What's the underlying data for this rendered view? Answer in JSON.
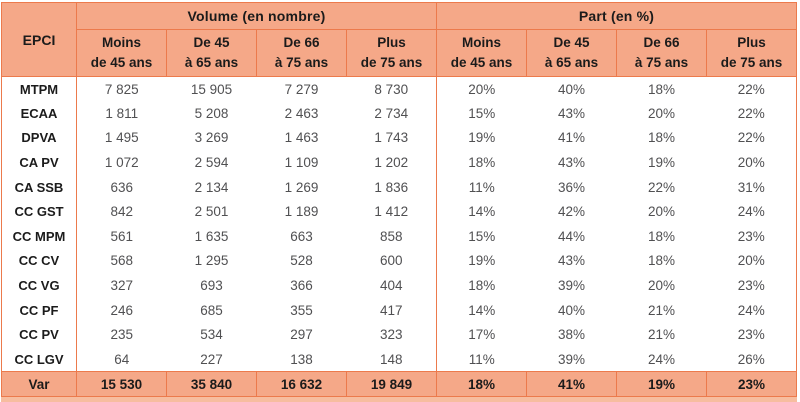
{
  "colors": {
    "header_bg": "#F5A888",
    "border": "#EC7A4C",
    "header_text": "#1b1b1b",
    "body_text": "#505052",
    "shadow": "#F7BD9F"
  },
  "chart_data": {
    "type": "table",
    "corner_header": "EPCI",
    "column_groups": [
      "Volume (en nombre)",
      "Part (en %)"
    ],
    "age_columns": [
      [
        "Moins",
        "de 45 ans"
      ],
      [
        "De 45",
        "à 65 ans"
      ],
      [
        "De 66",
        "à 75 ans"
      ],
      [
        "Plus",
        "de 75 ans"
      ]
    ],
    "rows": [
      {
        "label": "MTPM",
        "volume": [
          "7 825",
          "15 905",
          "7 279",
          "8 730"
        ],
        "part": [
          "20%",
          "40%",
          "18%",
          "22%"
        ]
      },
      {
        "label": "ECAA",
        "volume": [
          "1 811",
          "5 208",
          "2 463",
          "2 734"
        ],
        "part": [
          "15%",
          "43%",
          "20%",
          "22%"
        ]
      },
      {
        "label": "DPVA",
        "volume": [
          "1 495",
          "3 269",
          "1 463",
          "1 743"
        ],
        "part": [
          "19%",
          "41%",
          "18%",
          "22%"
        ]
      },
      {
        "label": "CA PV",
        "volume": [
          "1 072",
          "2 594",
          "1 109",
          "1 202"
        ],
        "part": [
          "18%",
          "43%",
          "19%",
          "20%"
        ]
      },
      {
        "label": "CA SSB",
        "volume": [
          "636",
          "2 134",
          "1 269",
          "1 836"
        ],
        "part": [
          "11%",
          "36%",
          "22%",
          "31%"
        ]
      },
      {
        "label": "CC GST",
        "volume": [
          "842",
          "2 501",
          "1 189",
          "1 412"
        ],
        "part": [
          "14%",
          "42%",
          "20%",
          "24%"
        ]
      },
      {
        "label": "CC MPM",
        "volume": [
          "561",
          "1 635",
          "663",
          "858"
        ],
        "part": [
          "15%",
          "44%",
          "18%",
          "23%"
        ]
      },
      {
        "label": "CC CV",
        "volume": [
          "568",
          "1 295",
          "528",
          "600"
        ],
        "part": [
          "19%",
          "43%",
          "18%",
          "20%"
        ]
      },
      {
        "label": "CC VG",
        "volume": [
          "327",
          "693",
          "366",
          "404"
        ],
        "part": [
          "18%",
          "39%",
          "20%",
          "23%"
        ]
      },
      {
        "label": "CC PF",
        "volume": [
          "246",
          "685",
          "355",
          "417"
        ],
        "part": [
          "14%",
          "40%",
          "21%",
          "24%"
        ]
      },
      {
        "label": "CC PV",
        "volume": [
          "235",
          "534",
          "297",
          "323"
        ],
        "part": [
          "17%",
          "38%",
          "21%",
          "23%"
        ]
      },
      {
        "label": "CC LGV",
        "volume": [
          "64",
          "227",
          "138",
          "148"
        ],
        "part": [
          "11%",
          "39%",
          "24%",
          "26%"
        ]
      }
    ],
    "total_row": {
      "label": "Var",
      "volume": [
        "15 530",
        "35 840",
        "16 632",
        "19 849"
      ],
      "part": [
        "18%",
        "41%",
        "19%",
        "23%"
      ]
    }
  }
}
